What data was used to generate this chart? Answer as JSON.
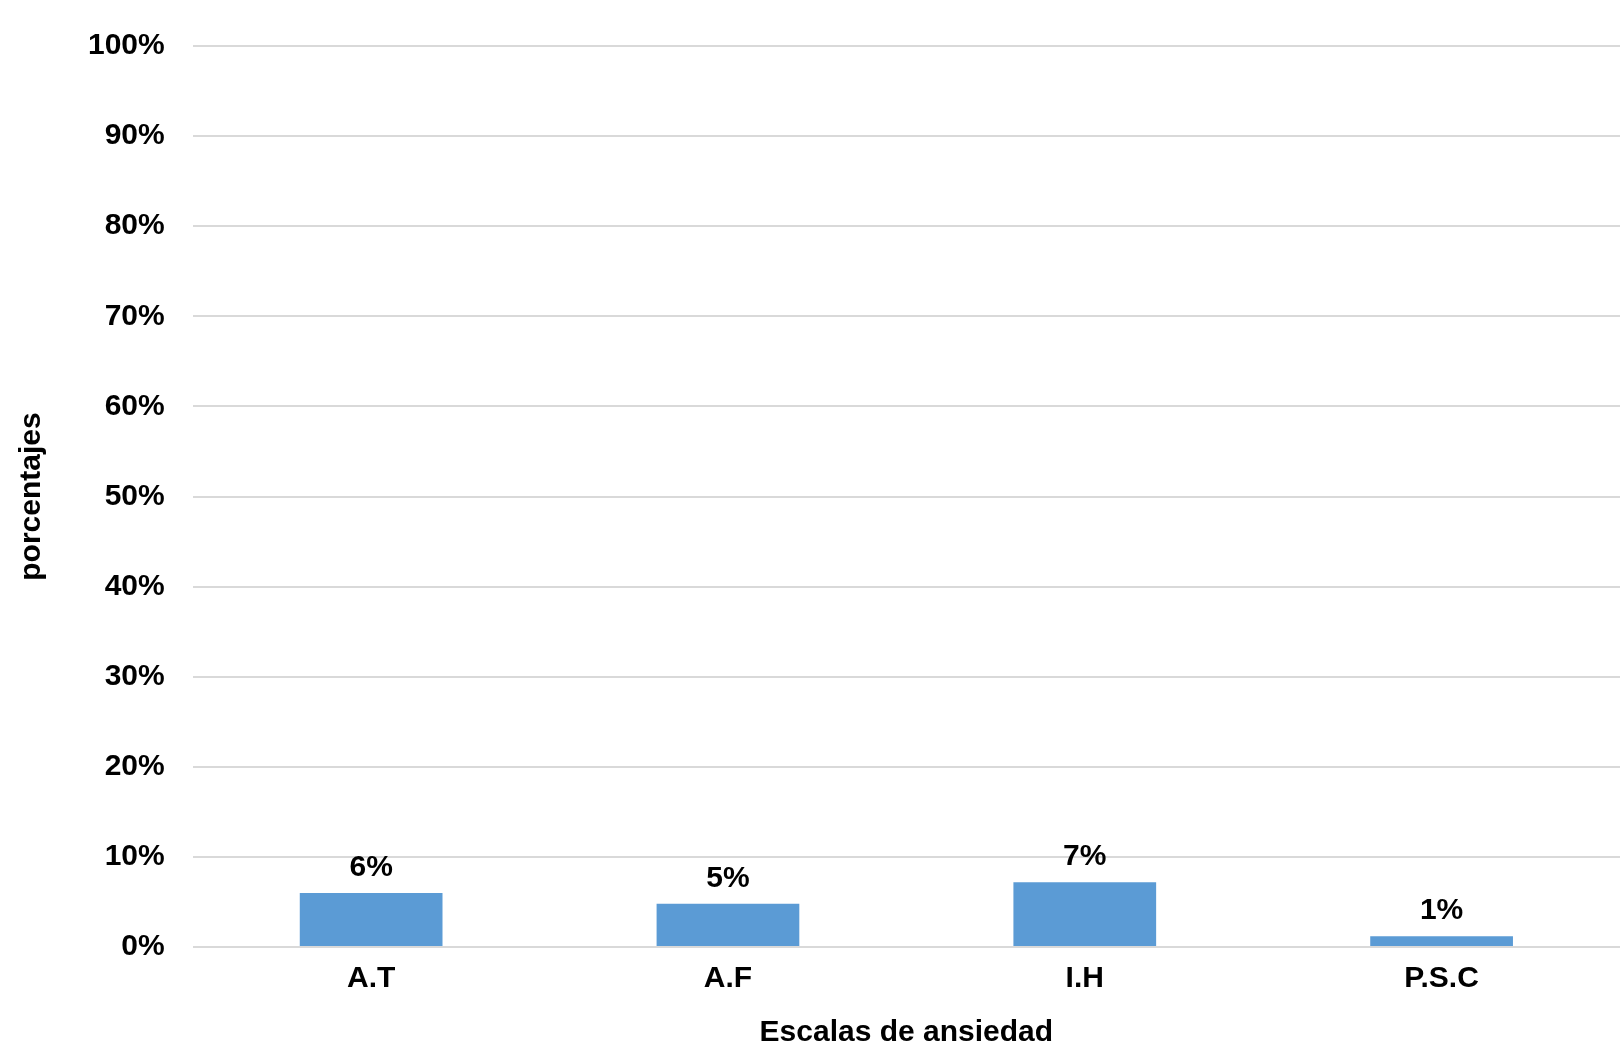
{
  "chart_data": {
    "type": "bar",
    "xlabel": "Escalas de ansiedad",
    "ylabel": "porcentajes",
    "categories": [
      "A.T",
      "A.F",
      "I.H",
      "P.S.C"
    ],
    "values": [
      6,
      4.8,
      7.2,
      1.2
    ],
    "value_labels": [
      "6%",
      "5%",
      "7%",
      "1%"
    ],
    "color": "#5b9bd5",
    "ylim": [
      0,
      100
    ],
    "yticks": [
      {
        "value": 0,
        "label": "0%"
      },
      {
        "value": 10,
        "label": "10%"
      },
      {
        "value": 20,
        "label": "20%"
      },
      {
        "value": 30,
        "label": "30%"
      },
      {
        "value": 40,
        "label": "40%"
      },
      {
        "value": 50,
        "label": "50%"
      },
      {
        "value": 60,
        "label": "60%"
      },
      {
        "value": 70,
        "label": "70%"
      },
      {
        "value": 80,
        "label": "80%"
      },
      {
        "value": 90,
        "label": "90%"
      },
      {
        "value": 100,
        "label": "100%"
      }
    ],
    "grid": "y"
  }
}
